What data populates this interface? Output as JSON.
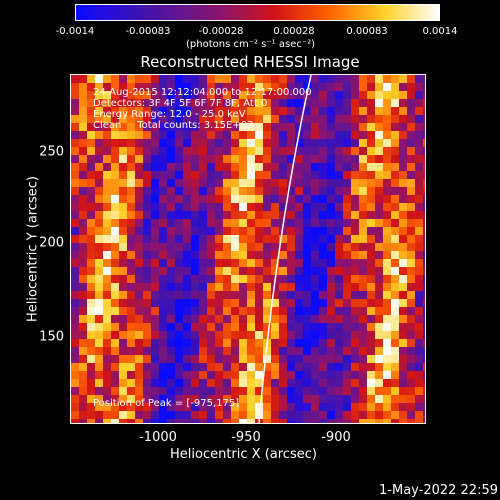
{
  "colorbar": {
    "tick_labels": [
      "-0.0014",
      "-0.00083",
      "-0.00028",
      "0.00028",
      "0.00083",
      "0.0014"
    ],
    "units": "(photons cm⁻² s⁻¹ asec⁻²)"
  },
  "title": "Reconstructed RHESSI Image",
  "info": {
    "time": "24-Aug-2015 12:12:04.000 to 12:17:00.000",
    "detectors": "Detectors: 3F 4F 5F 6F 7F 8F, Att 0",
    "energy": "Energy Range: 12.0 - 25.0 keV",
    "clean": "Clean     Total counts: 3.15E+03",
    "peak": "Position of Peak = [-975,175]"
  },
  "axes": {
    "xlabel": "Heliocentric X (arcsec)",
    "ylabel": "Heliocentric Y (arcsec)",
    "xticks": [
      "-1000",
      "-950",
      "-900"
    ],
    "yticks": [
      "250",
      "200",
      "150"
    ]
  },
  "timestamp": "1-May-2022 22:59",
  "colors": {
    "background": "#000000",
    "limb": "#ffffff"
  }
}
